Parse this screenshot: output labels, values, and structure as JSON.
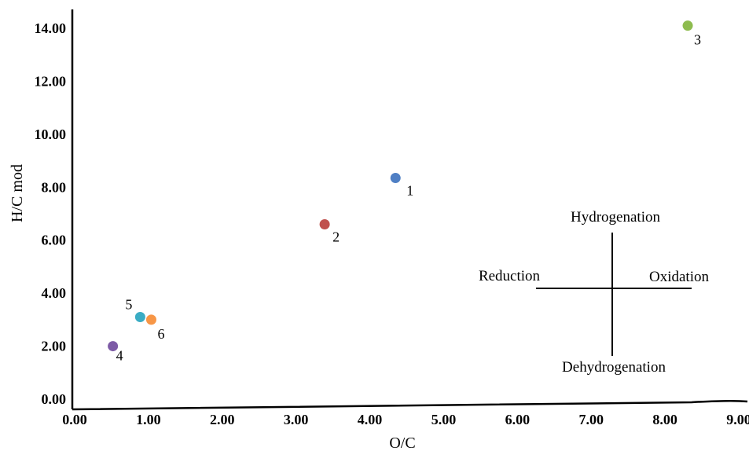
{
  "chart_data": {
    "type": "scatter",
    "title": "",
    "xlabel": "O/C",
    "ylabel": "H/C mod",
    "xlim": [
      0,
      9
    ],
    "ylim": [
      0,
      14
    ],
    "x_ticks": [
      "0.00",
      "1.00",
      "2.00",
      "3.00",
      "4.00",
      "5.00",
      "6.00",
      "7.00",
      "8.00",
      "9.00"
    ],
    "y_ticks": [
      "0.00",
      "2.00",
      "4.00",
      "6.00",
      "8.00",
      "10.00",
      "12.00",
      "14.00"
    ],
    "grid": false,
    "points": [
      {
        "label": "1",
        "x": 4.38,
        "y": 8.35,
        "color": "#4f7fc4"
      },
      {
        "label": "2",
        "x": 3.42,
        "y": 6.6,
        "color": "#c0504d"
      },
      {
        "label": "3",
        "x": 8.34,
        "y": 14.1,
        "color": "#8ebc4f"
      },
      {
        "label": "4",
        "x": 0.55,
        "y": 2.0,
        "color": "#7d5ba6"
      },
      {
        "label": "5",
        "x": 0.92,
        "y": 3.1,
        "color": "#3aacc4"
      },
      {
        "label": "6",
        "x": 1.07,
        "y": 3.0,
        "color": "#f79646"
      }
    ],
    "annotations": {
      "up": "Hydrogenation",
      "down": "Dehydrogenation",
      "left": "Reduction",
      "right": "Oxidation"
    }
  }
}
